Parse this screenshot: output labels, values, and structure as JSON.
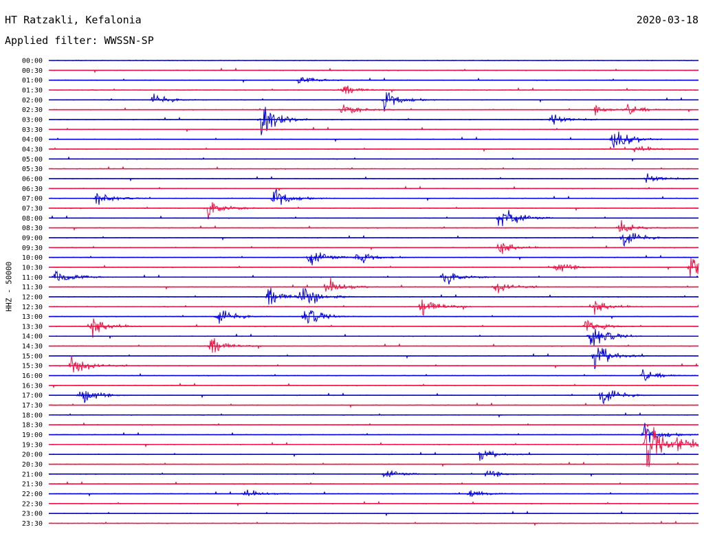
{
  "header": {
    "station": "HT Ratzakli, Kefalonia",
    "date": "2020-03-18",
    "filter": "Applied filter: WWSSN-SP"
  },
  "channel_label": "HHZ - 50000",
  "colors": {
    "blue": "#0000e0",
    "red": "#ee1144"
  },
  "chart_data": {
    "type": "line",
    "title": "",
    "ylabel": "HHZ - 50000",
    "xlabel": "",
    "row_labels": [
      "00:00",
      "00:30",
      "01:00",
      "01:30",
      "02:00",
      "02:30",
      "03:00",
      "03:30",
      "04:00",
      "04:30",
      "05:00",
      "05:30",
      "06:00",
      "06:30",
      "07:00",
      "07:30",
      "08:00",
      "08:30",
      "09:00",
      "09:30",
      "10:00",
      "10:30",
      "11:00",
      "11:30",
      "12:00",
      "12:30",
      "13:00",
      "13:30",
      "14:00",
      "14:30",
      "15:00",
      "15:30",
      "16:00",
      "16:30",
      "17:00",
      "17:30",
      "18:00",
      "18:30",
      "19:00",
      "19:30",
      "20:00",
      "20:30",
      "21:00",
      "21:30",
      "22:00",
      "22:30",
      "23:00",
      "23:30"
    ],
    "row_colors": [
      "blue",
      "red"
    ],
    "row_duration_minutes": 30,
    "events": [
      {
        "row": "01:00",
        "minute": 11.5,
        "amplitude": 0.4
      },
      {
        "row": "01:30",
        "minute": 13.5,
        "amplitude": 0.6
      },
      {
        "row": "02:00",
        "minute": 4.8,
        "amplitude": 0.6
      },
      {
        "row": "02:00",
        "minute": 15.5,
        "amplitude": 1.0
      },
      {
        "row": "02:30",
        "minute": 13.5,
        "amplitude": 0.6
      },
      {
        "row": "02:30",
        "minute": 25.2,
        "amplitude": 0.4
      },
      {
        "row": "02:30",
        "minute": 26.7,
        "amplitude": 0.5
      },
      {
        "row": "03:00",
        "minute": 9.8,
        "amplitude": 1.6
      },
      {
        "row": "03:00",
        "minute": 23.2,
        "amplitude": 0.6
      },
      {
        "row": "04:00",
        "minute": 26.0,
        "amplitude": 1.2
      },
      {
        "row": "04:30",
        "minute": 27.0,
        "amplitude": 0.4
      },
      {
        "row": "06:00",
        "minute": 27.6,
        "amplitude": 0.5
      },
      {
        "row": "07:00",
        "minute": 2.2,
        "amplitude": 0.6
      },
      {
        "row": "07:00",
        "minute": 10.4,
        "amplitude": 1.1
      },
      {
        "row": "07:30",
        "minute": 7.3,
        "amplitude": 1.0
      },
      {
        "row": "08:00",
        "minute": 20.8,
        "amplitude": 1.4
      },
      {
        "row": "08:30",
        "minute": 26.3,
        "amplitude": 0.6
      },
      {
        "row": "09:00",
        "minute": 26.5,
        "amplitude": 1.0
      },
      {
        "row": "09:30",
        "minute": 20.8,
        "amplitude": 0.6
      },
      {
        "row": "10:00",
        "minute": 12.0,
        "amplitude": 0.8
      },
      {
        "row": "10:00",
        "minute": 14.2,
        "amplitude": 0.7
      },
      {
        "row": "10:30",
        "minute": 23.4,
        "amplitude": 0.6
      },
      {
        "row": "10:30",
        "minute": 29.6,
        "amplitude": 0.9
      },
      {
        "row": "11:00",
        "minute": 0.3,
        "amplitude": 0.9
      },
      {
        "row": "11:00",
        "minute": 18.2,
        "amplitude": 0.9
      },
      {
        "row": "11:30",
        "minute": 12.8,
        "amplitude": 0.8
      },
      {
        "row": "11:30",
        "minute": 20.6,
        "amplitude": 0.6
      },
      {
        "row": "12:00",
        "minute": 10.1,
        "amplitude": 1.0
      },
      {
        "row": "12:00",
        "minute": 11.6,
        "amplitude": 1.2
      },
      {
        "row": "12:30",
        "minute": 17.2,
        "amplitude": 1.1
      },
      {
        "row": "12:30",
        "minute": 25.2,
        "amplitude": 0.6
      },
      {
        "row": "13:00",
        "minute": 7.8,
        "amplitude": 0.9
      },
      {
        "row": "13:00",
        "minute": 11.8,
        "amplitude": 1.0
      },
      {
        "row": "13:30",
        "minute": 2.0,
        "amplitude": 0.9
      },
      {
        "row": "13:30",
        "minute": 24.8,
        "amplitude": 0.7
      },
      {
        "row": "14:00",
        "minute": 25.0,
        "amplitude": 1.3
      },
      {
        "row": "14:30",
        "minute": 7.4,
        "amplitude": 1.0
      },
      {
        "row": "15:00",
        "minute": 25.2,
        "amplitude": 1.2
      },
      {
        "row": "15:30",
        "minute": 1.0,
        "amplitude": 1.0
      },
      {
        "row": "16:00",
        "minute": 27.4,
        "amplitude": 0.6
      },
      {
        "row": "17:00",
        "minute": 1.4,
        "amplitude": 1.0
      },
      {
        "row": "17:00",
        "minute": 25.5,
        "amplitude": 1.1
      },
      {
        "row": "19:00",
        "minute": 27.5,
        "amplitude": 1.2
      },
      {
        "row": "19:30",
        "minute": 27.6,
        "amplitude": 2.4
      },
      {
        "row": "19:30",
        "minute": 29.0,
        "amplitude": 0.8
      },
      {
        "row": "20:00",
        "minute": 19.9,
        "amplitude": 0.5
      },
      {
        "row": "21:00",
        "minute": 15.5,
        "amplitude": 0.4
      },
      {
        "row": "21:00",
        "minute": 20.2,
        "amplitude": 0.4
      },
      {
        "row": "22:00",
        "minute": 9.0,
        "amplitude": 0.4
      },
      {
        "row": "22:00",
        "minute": 19.4,
        "amplitude": 0.4
      }
    ]
  }
}
